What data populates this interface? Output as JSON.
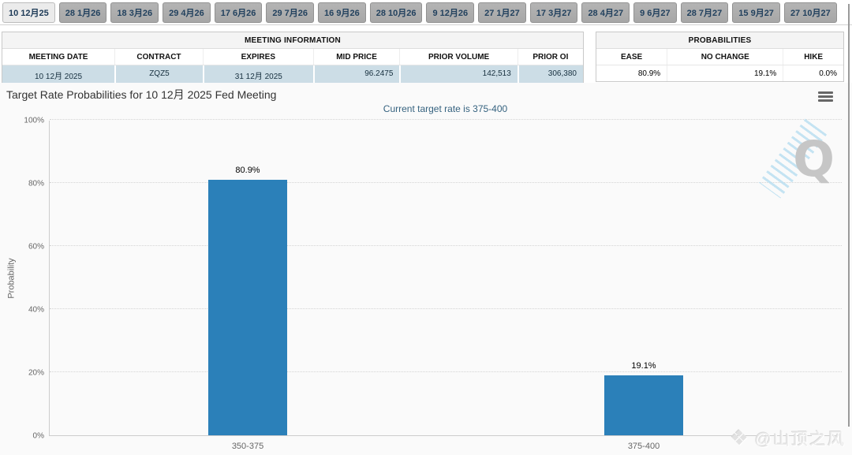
{
  "tabs": {
    "items": [
      {
        "label": "10 12月25",
        "active": true
      },
      {
        "label": "28 1月26",
        "active": false
      },
      {
        "label": "18 3月26",
        "active": false
      },
      {
        "label": "29 4月26",
        "active": false
      },
      {
        "label": "17 6月26",
        "active": false
      },
      {
        "label": "29 7月26",
        "active": false
      },
      {
        "label": "16 9月26",
        "active": false
      },
      {
        "label": "28 10月26",
        "active": false
      },
      {
        "label": "9 12月26",
        "active": false
      },
      {
        "label": "27 1月27",
        "active": false
      },
      {
        "label": "17 3月27",
        "active": false
      },
      {
        "label": "28 4月27",
        "active": false
      },
      {
        "label": "9 6月27",
        "active": false
      },
      {
        "label": "28 7月27",
        "active": false
      },
      {
        "label": "15 9月27",
        "active": false
      },
      {
        "label": "27 10月27",
        "active": false
      }
    ]
  },
  "meeting_info": {
    "title": "MEETING INFORMATION",
    "columns": [
      "MEETING DATE",
      "CONTRACT",
      "EXPIRES",
      "MID PRICE",
      "PRIOR VOLUME",
      "PRIOR OI"
    ],
    "row": [
      "10 12月 2025",
      "ZQZ5",
      "31 12月 2025",
      "96.2475",
      "142,513",
      "306,380"
    ]
  },
  "probabilities": {
    "title": "PROBABILITIES",
    "columns": [
      "EASE",
      "NO CHANGE",
      "HIKE"
    ],
    "row": [
      "80.9%",
      "19.1%",
      "0.0%"
    ]
  },
  "chart": {
    "title": "Target Rate Probabilities for 10 12月 2025 Fed Meeting",
    "subtitle": "Current target rate is 375-400",
    "menu_icon": "hamburger-menu-icon"
  },
  "chart_data": {
    "type": "bar",
    "categories": [
      "350-375",
      "375-400"
    ],
    "values": [
      80.9,
      19.1
    ],
    "data_labels": [
      "80.9%",
      "19.1%"
    ],
    "title": "Target Rate Probabilities for 10 12月 2025 Fed Meeting",
    "subtitle": "Current target rate is 375-400",
    "xlabel": "",
    "ylabel": "Probability",
    "ylim": [
      0,
      100
    ],
    "yticks": [
      "0%",
      "20%",
      "40%",
      "60%",
      "80%",
      "100%"
    ],
    "grid": "horizontal dotted gridlines at each 20%",
    "legend": "none",
    "bar_color": "#2b80b9"
  },
  "watermarks": {
    "q_logo": "Q",
    "credit_icon": "❖",
    "credit": "@山顶之风"
  },
  "colors": {
    "bar": "#2b80b9",
    "highlight_row": "#ccdde6",
    "subtitle": "#35627f"
  }
}
